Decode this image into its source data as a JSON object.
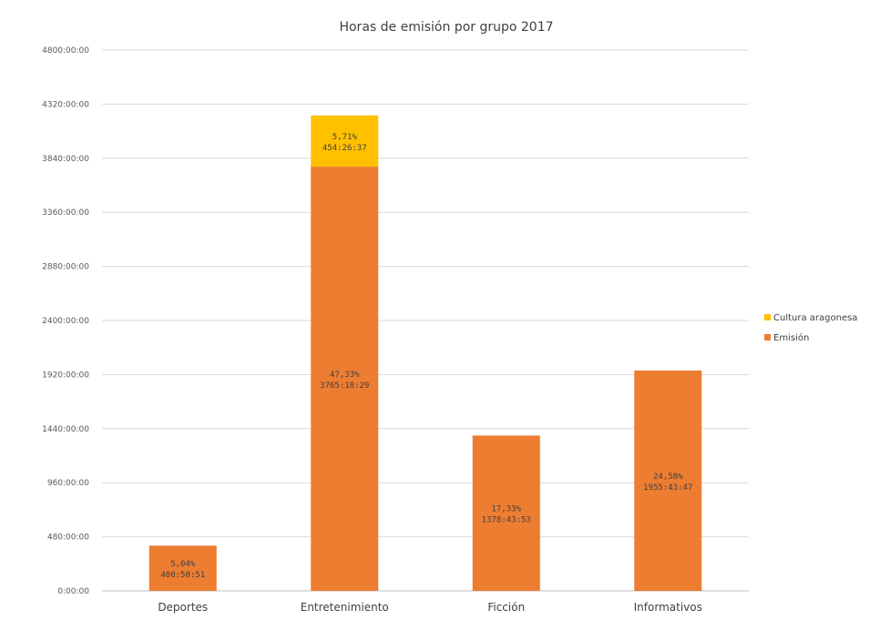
{
  "chart_data": {
    "type": "bar",
    "stacked": true,
    "title": "Horas de emisión por grupo 2017",
    "categories": [
      "Deportes",
      "Entretenimiento",
      "Ficción",
      "Informativos"
    ],
    "series": [
      {
        "name": "Emisión",
        "color": "#ED7D31",
        "values": [
          400.8475,
          3765.3081,
          1378.7314,
          1955.7297
        ],
        "labels": [
          {
            "pct": "5,04%",
            "time": "400:50:51"
          },
          {
            "pct": "47,33%",
            "time": "3765:18:29"
          },
          {
            "pct": "17,33%",
            "time": "1378:43:53"
          },
          {
            "pct": "24,58%",
            "time": "1955:43:47"
          }
        ]
      },
      {
        "name": "Cultura aragonesa",
        "color": "#FFC000",
        "values": [
          0,
          454.4436,
          0,
          0
        ],
        "labels": [
          null,
          {
            "pct": "5,71%",
            "time": "454:26:37"
          },
          null,
          null
        ]
      }
    ],
    "ylim": [
      0,
      4800
    ],
    "yticks": [
      0,
      480,
      960,
      1440,
      1920,
      2400,
      2880,
      3360,
      3840,
      4320,
      4800
    ],
    "ytick_labels": [
      "0:00:00",
      "480:00:00",
      "960:00:00",
      "1440:00:00",
      "1920:00:00",
      "2400:00:00",
      "2880:00:00",
      "3360:00:00",
      "3840:00:00",
      "4320:00:00",
      "4800:00:00"
    ],
    "grid": true,
    "legend_position": "right",
    "legend": [
      {
        "name": "Cultura aragonesa",
        "color": "#FFC000"
      },
      {
        "name": "Emisión",
        "color": "#ED7D31"
      }
    ]
  }
}
